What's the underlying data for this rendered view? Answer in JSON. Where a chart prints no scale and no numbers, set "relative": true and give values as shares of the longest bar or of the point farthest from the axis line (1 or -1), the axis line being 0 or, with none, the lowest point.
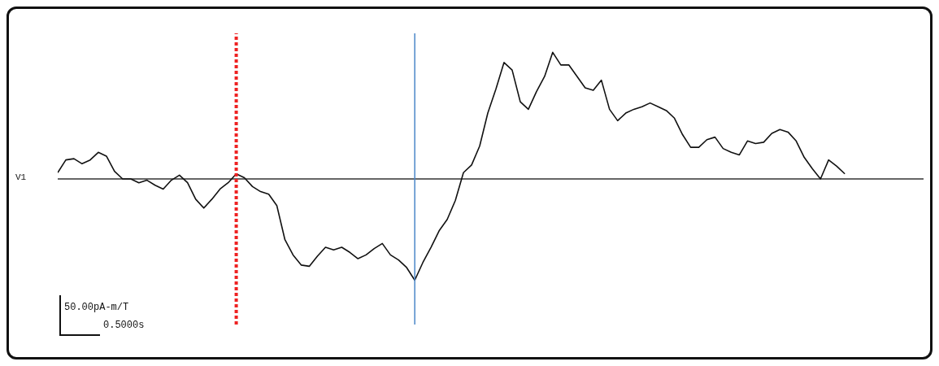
{
  "chart_data": {
    "type": "line",
    "relative": true,
    "ylabel": "V1",
    "color": "#111111",
    "categories": [
      null,
      null,
      null,
      null,
      null,
      null,
      null,
      null,
      null,
      null,
      null,
      null,
      null,
      null,
      null,
      null,
      null,
      null,
      null,
      null,
      null,
      null,
      null,
      null,
      null,
      null,
      null,
      null,
      null,
      null,
      null,
      null,
      null,
      null,
      null,
      null,
      null,
      null,
      null,
      null,
      null,
      null,
      null,
      null,
      null,
      null,
      null,
      null,
      null,
      null,
      null,
      null,
      null,
      null,
      null,
      null,
      null,
      null,
      null,
      null,
      null,
      null,
      null,
      null,
      null,
      null,
      null,
      null,
      null,
      null,
      null,
      null,
      null,
      null,
      null,
      null,
      null,
      null,
      null,
      null,
      null,
      null,
      null,
      null,
      null,
      null,
      null,
      null,
      null,
      null,
      null,
      null,
      null,
      null,
      null,
      null,
      null,
      null
    ],
    "values": [
      0.05,
      0.15,
      0.16,
      0.12,
      0.15,
      0.21,
      0.18,
      0.06,
      0,
      0,
      -0.03,
      -0.01,
      -0.05,
      -0.08,
      -0.01,
      0.03,
      -0.03,
      -0.16,
      -0.23,
      -0.16,
      -0.08,
      -0.03,
      0.04,
      0.01,
      -0.06,
      -0.1,
      -0.12,
      -0.21,
      -0.48,
      -0.6,
      -0.68,
      -0.69,
      -0.61,
      -0.54,
      -0.56,
      -0.54,
      -0.58,
      -0.63,
      -0.6,
      -0.55,
      -0.51,
      -0.6,
      -0.64,
      -0.7,
      -0.8,
      -0.66,
      -0.54,
      -0.41,
      -0.32,
      -0.17,
      0.05,
      0.11,
      0.26,
      0.52,
      0.71,
      0.92,
      0.86,
      0.61,
      0.55,
      0.69,
      0.81,
      1,
      0.9,
      0.9,
      0.81,
      0.72,
      0.7,
      0.78,
      0.55,
      0.46,
      0.52,
      0.55,
      0.57,
      0.6,
      0.57,
      0.54,
      0.48,
      0.35,
      0.25,
      0.25,
      0.31,
      0.33,
      0.24,
      0.21,
      0.19,
      0.3,
      0.28,
      0.29,
      0.36,
      0.39,
      0.37,
      0.3,
      0.17,
      0.08,
      0,
      0.15,
      0.1,
      0.04
    ],
    "annotations": [
      "50.00pA-m/T",
      "0.5000s"
    ]
  }
}
